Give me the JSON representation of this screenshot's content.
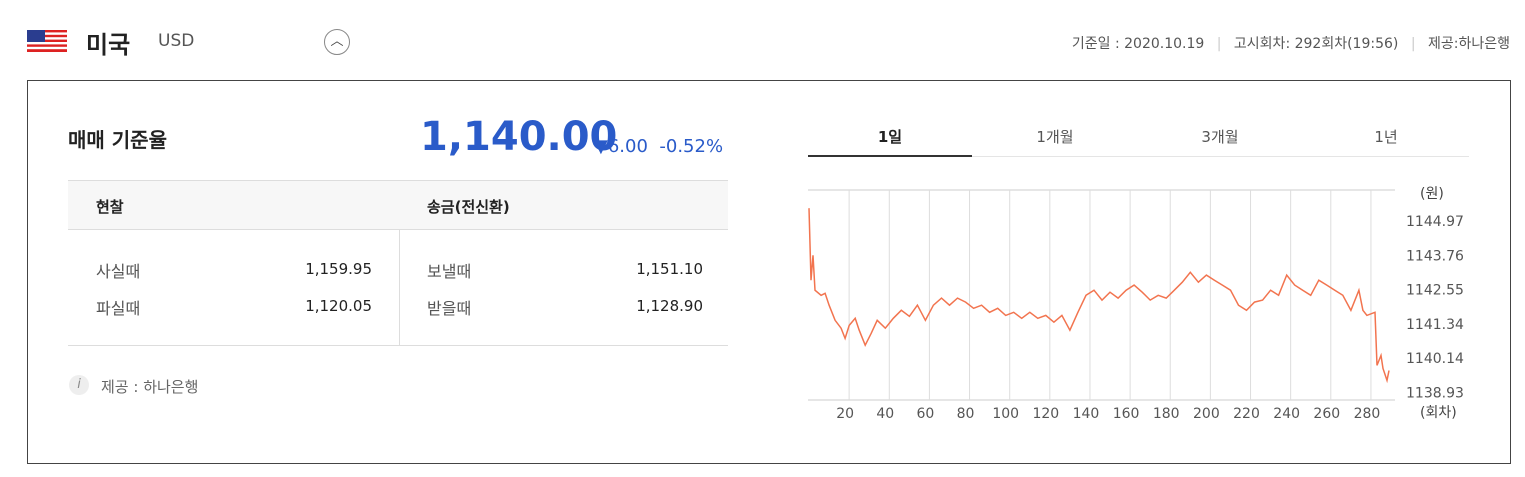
{
  "header": {
    "country": "미국",
    "currency": "USD",
    "base_date": "기준일 : 2020.10.19",
    "notice": "고시회차: 292회차(19:56)",
    "provider": "제공:하나은행"
  },
  "rate": {
    "title": "매매 기준율",
    "value": "1,140.00",
    "change": "6.00",
    "change_pct": "-0.52%"
  },
  "table": {
    "headers": [
      "현찰",
      "송금(전신환)"
    ],
    "rows": [
      [
        "사실때",
        "1,159.95",
        "보낼때",
        "1,151.10"
      ],
      [
        "파실때",
        "1,120.05",
        "받을때",
        "1,128.90"
      ]
    ]
  },
  "note": "제공 : 하나은행",
  "tabs": [
    "1일",
    "1개월",
    "3개월",
    "1년"
  ],
  "chart_data": {
    "type": "line",
    "y_unit": "(원)",
    "x_unit": "(회차)",
    "color": "#f2744f",
    "x": [
      2,
      3,
      4,
      5,
      8,
      10,
      12,
      15,
      18,
      20,
      22,
      25,
      27,
      30,
      33,
      36,
      40,
      44,
      48,
      52,
      56,
      60,
      64,
      68,
      72,
      76,
      80,
      84,
      88,
      92,
      96,
      100,
      104,
      108,
      112,
      116,
      120,
      124,
      128,
      132,
      136,
      140,
      144,
      148,
      152,
      156,
      160,
      164,
      168,
      172,
      176,
      180,
      184,
      188,
      192,
      196,
      200,
      204,
      208,
      212,
      216,
      220,
      224,
      228,
      232,
      236,
      240,
      244,
      248,
      252,
      256,
      260,
      264,
      268,
      272,
      276,
      278,
      280,
      284,
      285,
      287,
      288,
      290,
      291
    ],
    "values": [
      1145.46,
      1142.92,
      1143.8,
      1142.57,
      1142.39,
      1142.46,
      1142.04,
      1141.51,
      1141.23,
      1140.87,
      1141.33,
      1141.58,
      1141.16,
      1140.63,
      1141.05,
      1141.51,
      1141.23,
      1141.58,
      1141.86,
      1141.65,
      1142.04,
      1141.51,
      1142.04,
      1142.29,
      1142.04,
      1142.29,
      1142.15,
      1141.93,
      1142.04,
      1141.79,
      1141.93,
      1141.68,
      1141.79,
      1141.58,
      1141.79,
      1141.58,
      1141.68,
      1141.44,
      1141.68,
      1141.16,
      1141.79,
      1142.39,
      1142.57,
      1142.22,
      1142.5,
      1142.29,
      1142.57,
      1142.75,
      1142.5,
      1142.22,
      1142.39,
      1142.29,
      1142.57,
      1142.85,
      1143.2,
      1142.85,
      1143.1,
      1142.92,
      1142.75,
      1142.57,
      1142.04,
      1141.86,
      1142.15,
      1142.22,
      1142.57,
      1142.39,
      1143.1,
      1142.75,
      1142.57,
      1142.39,
      1142.92,
      1142.75,
      1142.57,
      1142.39,
      1141.86,
      1142.57,
      1141.86,
      1141.68,
      1141.79,
      1139.92,
      1140.27,
      1139.81,
      1139.39,
      1139.74
    ],
    "xlim": [
      0,
      290
    ],
    "ylim": [
      1138.7,
      1146.1
    ],
    "xticks": [
      20,
      40,
      60,
      80,
      100,
      120,
      140,
      160,
      180,
      200,
      220,
      240,
      260,
      280
    ],
    "yticks": [
      1138.93,
      1140.14,
      1141.34,
      1142.55,
      1143.76,
      1144.97
    ],
    "grid": "x"
  }
}
